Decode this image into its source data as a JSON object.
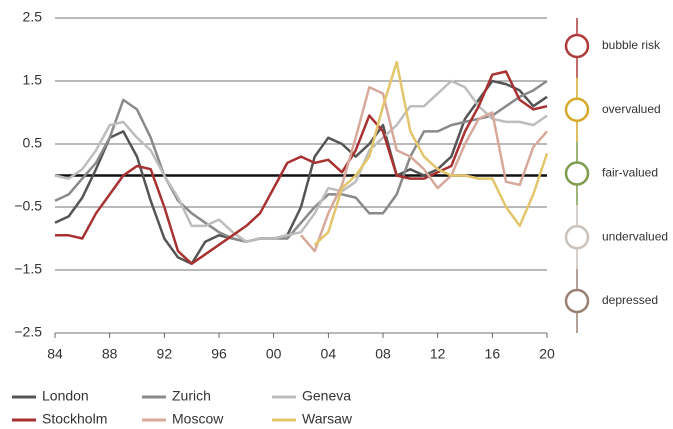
{
  "chart_data": {
    "type": "line",
    "x": [
      1984,
      1985,
      1986,
      1987,
      1988,
      1989,
      1990,
      1991,
      1992,
      1993,
      1994,
      1995,
      1996,
      1997,
      1998,
      1999,
      2000,
      2001,
      2002,
      2003,
      2004,
      2005,
      2006,
      2007,
      2008,
      2009,
      2010,
      2011,
      2012,
      2013,
      2014,
      2015,
      2016,
      2017,
      2018,
      2019,
      2020
    ],
    "xlim": [
      1984,
      2020
    ],
    "xticks": [
      {
        "value": 1984,
        "label": "84"
      },
      {
        "value": 1988,
        "label": "88"
      },
      {
        "value": 1992,
        "label": "92"
      },
      {
        "value": 1996,
        "label": "96"
      },
      {
        "value": 2000,
        "label": "00"
      },
      {
        "value": 2004,
        "label": "04"
      },
      {
        "value": 2008,
        "label": "08"
      },
      {
        "value": 2012,
        "label": "12"
      },
      {
        "value": 2016,
        "label": "16"
      },
      {
        "value": 2020,
        "label": "20"
      }
    ],
    "ylim": [
      -2.5,
      2.5
    ],
    "yticks": [
      {
        "value": -2.5,
        "label": "−2.5"
      },
      {
        "value": -1.5,
        "label": "−1.5"
      },
      {
        "value": -0.5,
        "label": "−0.5"
      },
      0.5,
      1.5,
      2.5
    ],
    "grid": true,
    "series": [
      {
        "name": "London",
        "color": "#555555",
        "values": [
          -0.75,
          -0.65,
          -0.35,
          0.1,
          0.6,
          0.7,
          0.3,
          -0.4,
          -1.0,
          -1.3,
          -1.4,
          -1.05,
          -0.95,
          -1.0,
          -1.05,
          -1.0,
          -1.0,
          -0.95,
          -0.5,
          0.3,
          0.6,
          0.5,
          0.3,
          0.5,
          0.8,
          0.0,
          0.1,
          0.0,
          0.1,
          0.3,
          0.9,
          1.2,
          1.5,
          1.45,
          1.35,
          1.1,
          1.25
        ]
      },
      {
        "name": "Zurich",
        "color": "#8a8a8a",
        "values": [
          -0.4,
          -0.3,
          -0.05,
          0.2,
          0.6,
          1.2,
          1.05,
          0.6,
          0.0,
          -0.4,
          -0.6,
          -0.75,
          -0.9,
          -1.0,
          -1.05,
          -1.0,
          -1.0,
          -1.0,
          -0.75,
          -0.5,
          -0.3,
          -0.3,
          -0.35,
          -0.6,
          -0.6,
          -0.3,
          0.3,
          0.7,
          0.7,
          0.8,
          0.85,
          0.9,
          0.95,
          1.1,
          1.25,
          1.35,
          1.5
        ]
      },
      {
        "name": "Geneva",
        "color": "#bdbdbd",
        "values": [
          0.0,
          -0.05,
          0.1,
          0.4,
          0.8,
          0.85,
          0.6,
          0.4,
          0.0,
          -0.35,
          -0.8,
          -0.8,
          -0.7,
          -0.9,
          -1.05,
          -1.0,
          -1.0,
          -0.95,
          -0.9,
          -0.6,
          -0.2,
          -0.25,
          -0.1,
          0.4,
          0.6,
          0.8,
          1.1,
          1.1,
          1.3,
          1.5,
          1.4,
          1.1,
          0.9,
          0.85,
          0.85,
          0.8,
          0.95
        ]
      },
      {
        "name": "Stockholm",
        "color": "#a83232",
        "values": [
          -0.95,
          -0.95,
          -1.0,
          -0.6,
          -0.3,
          0.0,
          0.15,
          0.1,
          -0.5,
          -1.2,
          -1.4,
          -1.25,
          -1.1,
          -0.95,
          -0.8,
          -0.6,
          -0.2,
          0.2,
          0.3,
          0.2,
          0.25,
          0.05,
          0.4,
          0.95,
          0.7,
          0.0,
          -0.05,
          -0.05,
          0.05,
          0.15,
          0.7,
          1.1,
          1.6,
          1.65,
          1.2,
          1.05,
          1.1
        ]
      },
      {
        "name": "Moscow",
        "color": "#d6a99b",
        "values": [
          null,
          null,
          null,
          null,
          null,
          null,
          null,
          null,
          null,
          null,
          null,
          null,
          null,
          null,
          null,
          null,
          null,
          null,
          -0.95,
          -1.2,
          -0.6,
          -0.15,
          0.6,
          1.4,
          1.3,
          0.4,
          0.3,
          0.1,
          -0.2,
          0.0,
          0.5,
          0.9,
          1.0,
          -0.1,
          -0.15,
          0.45,
          0.7
        ]
      },
      {
        "name": "Warsaw",
        "color": "#e3c56c",
        "values": [
          null,
          null,
          null,
          null,
          null,
          null,
          null,
          null,
          null,
          null,
          null,
          null,
          null,
          null,
          null,
          null,
          null,
          null,
          null,
          -1.1,
          -0.9,
          -0.2,
          0.0,
          0.3,
          1.1,
          1.8,
          0.7,
          0.3,
          0.1,
          0.0,
          0.0,
          -0.05,
          -0.05,
          -0.5,
          -0.8,
          -0.3,
          0.35
        ]
      }
    ],
    "zones": [
      {
        "label": "bubble risk",
        "color": "#b03a3a"
      },
      {
        "label": "overvalued",
        "color": "#d4a92a"
      },
      {
        "label": "fair-valued",
        "color": "#7f9c4e"
      },
      {
        "label": "undervalued",
        "color": "#c9c1ba"
      },
      {
        "label": "depressed",
        "color": "#9a8072"
      }
    ]
  }
}
